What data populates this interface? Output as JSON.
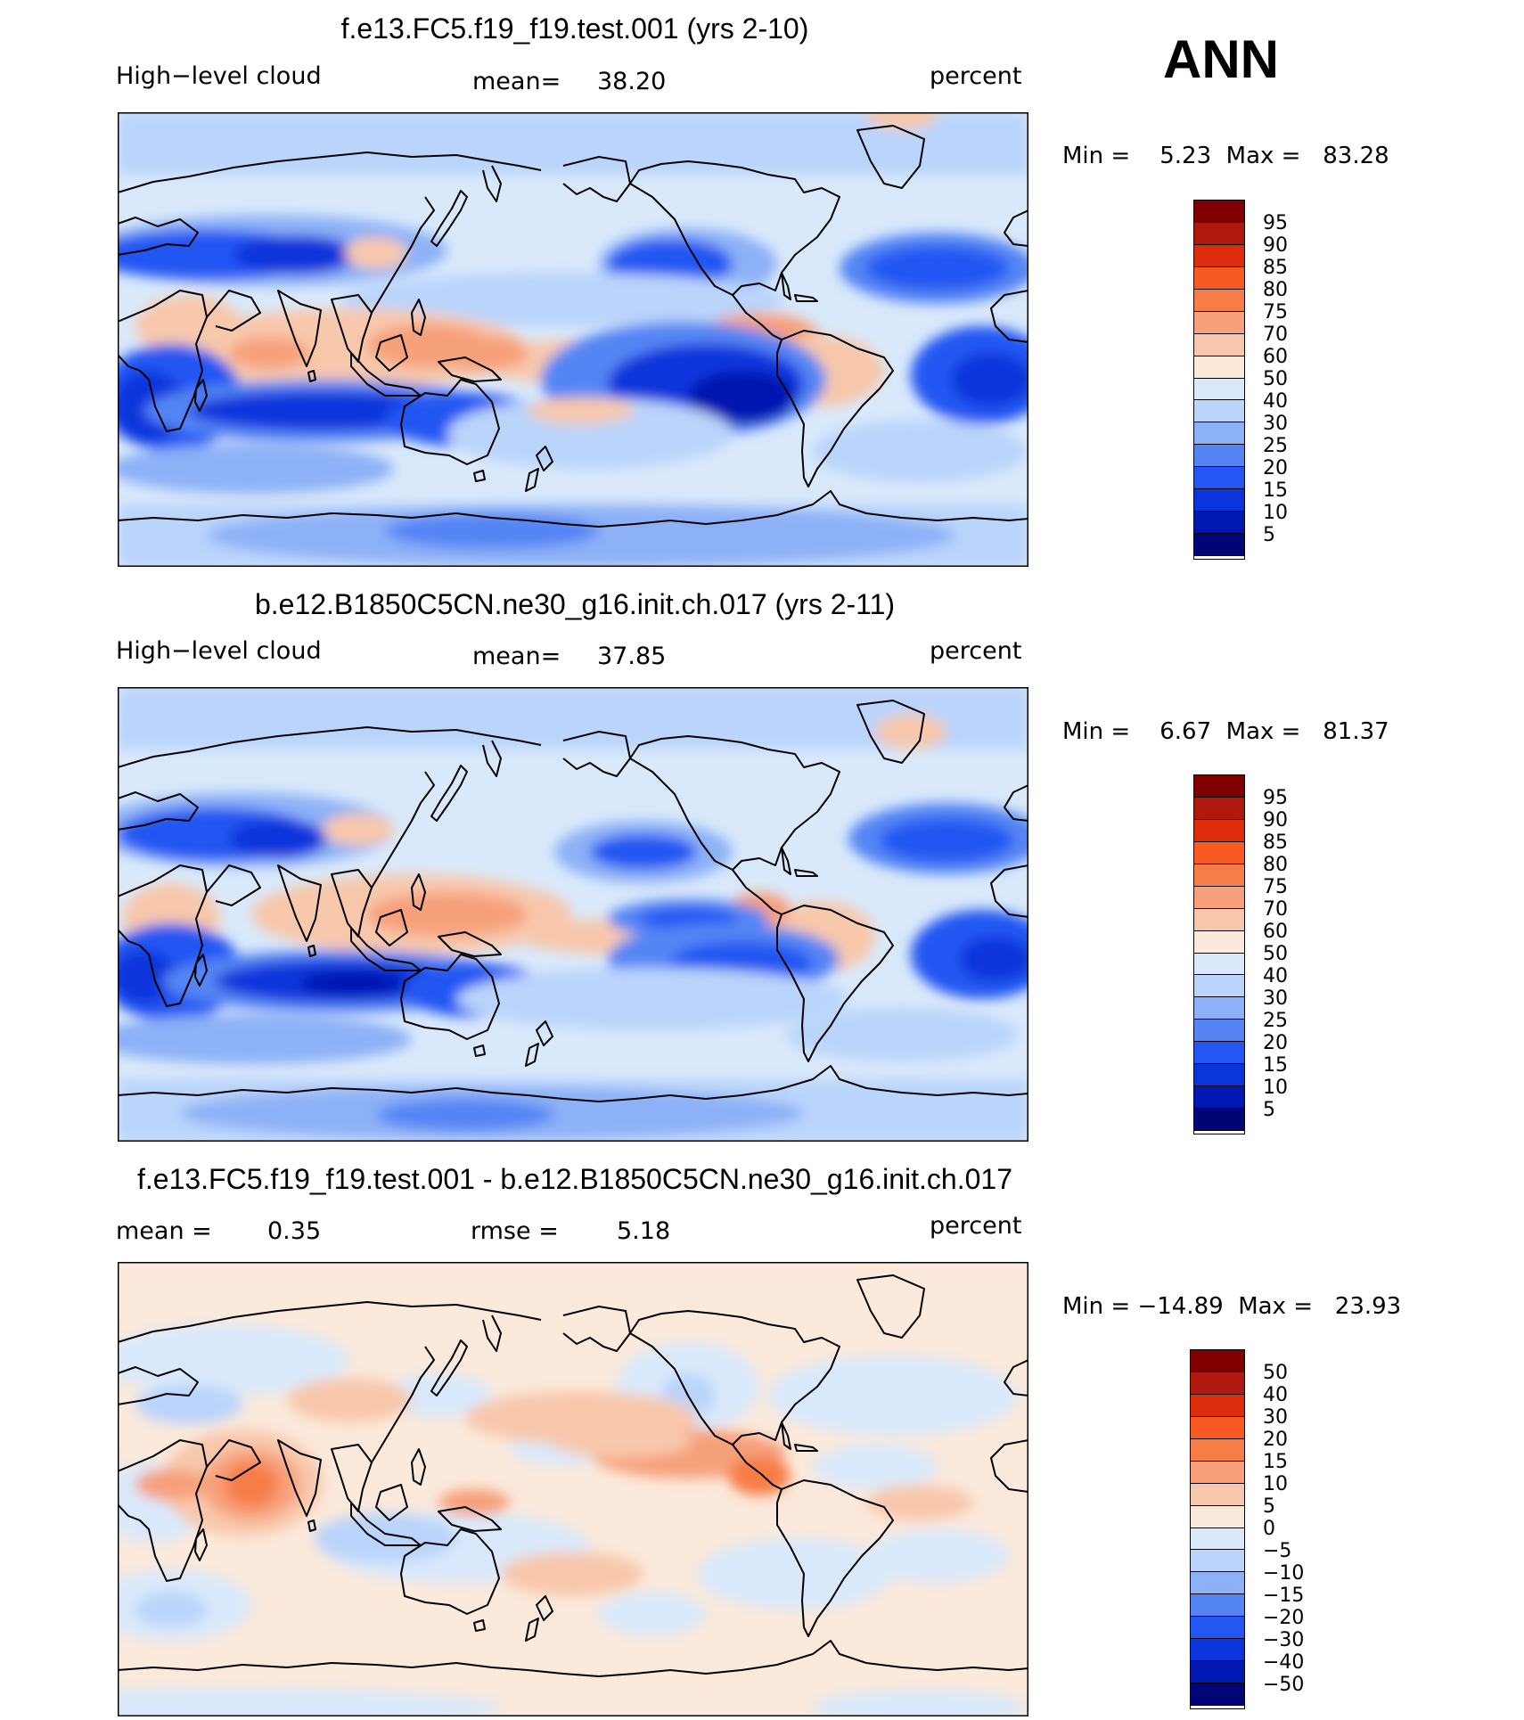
{
  "season_label": "ANN",
  "panels": [
    {
      "id": "test",
      "title": "f.e13.FC5.f19_f19.test.001 (yrs 2-10)",
      "variable": "High−level cloud",
      "stat1_label": "mean=",
      "stat1_value": "38.20",
      "units": "percent",
      "min_max_text": "Min =    5.23  Max =   83.28",
      "colorbar_labels": [
        "95",
        "90",
        "85",
        "80",
        "75",
        "70",
        "60",
        "50",
        "40",
        "30",
        "25",
        "20",
        "15",
        "10",
        "5"
      ]
    },
    {
      "id": "control",
      "title": "b.e12.B1850C5CN.ne30_g16.init.ch.017 (yrs 2-11)",
      "variable": "High−level cloud",
      "stat1_label": "mean=",
      "stat1_value": "37.85",
      "units": "percent",
      "min_max_text": "Min =    6.67  Max =   81.37",
      "colorbar_labels": [
        "95",
        "90",
        "85",
        "80",
        "75",
        "70",
        "60",
        "50",
        "40",
        "30",
        "25",
        "20",
        "15",
        "10",
        "5"
      ]
    },
    {
      "id": "difference",
      "title": "f.e13.FC5.f19_f19.test.001 - b.e12.B1850C5CN.ne30_g16.init.ch.017",
      "stat1_label": "mean =",
      "stat1_value": "0.35",
      "stat2_label": "rmse =",
      "stat2_value": "5.18",
      "units": "percent",
      "min_max_text": "Min = −14.89  Max =   23.93",
      "colorbar_labels": [
        "50",
        "40",
        "30",
        "20",
        "15",
        "10",
        "5",
        "0",
        "−5",
        "−10",
        "−15",
        "−20",
        "−30",
        "−40",
        "−50"
      ]
    }
  ],
  "colors": {
    "colorbar": [
      "#800000",
      "#B2190E",
      "#DE2D0C",
      "#F65A20",
      "#F77D47",
      "#F7A07B",
      "#F8C8AC",
      "#FBE9DB",
      "#D9E9FB",
      "#BAD4FB",
      "#8DB1F7",
      "#5585F4",
      "#2356F2",
      "#0A35DB",
      "#0018B1",
      "#000575"
    ],
    "diff_colorbar": [
      "#800000",
      "#B2190E",
      "#DE2D0C",
      "#F65A20",
      "#F77D47",
      "#F7A07B",
      "#F8C8AC",
      "#FBE9DB",
      "#D9E9FB",
      "#BAD4FB",
      "#8DB1F7",
      "#5585F4",
      "#2356F2",
      "#0A35DB",
      "#0018B1",
      "#000575"
    ],
    "map_border": "#000000",
    "coastline": "#000000"
  },
  "chart_data": [
    {
      "type": "heatmap",
      "title": "f.e13.FC5.f19_f19.test.001 (yrs 2-10)",
      "field": "High-level cloud",
      "units": "percent",
      "projection": "cylindrical equidistant, centered 180",
      "mean": 38.2,
      "min": 5.23,
      "max": 83.28,
      "levels": [
        5,
        10,
        15,
        20,
        25,
        30,
        40,
        50,
        60,
        70,
        75,
        80,
        85,
        90,
        95
      ]
    },
    {
      "type": "heatmap",
      "title": "b.e12.B1850C5CN.ne30_g16.init.ch.017 (yrs 2-11)",
      "field": "High-level cloud",
      "units": "percent",
      "projection": "cylindrical equidistant, centered 180",
      "mean": 37.85,
      "min": 6.67,
      "max": 81.37,
      "levels": [
        5,
        10,
        15,
        20,
        25,
        30,
        40,
        50,
        60,
        70,
        75,
        80,
        85,
        90,
        95
      ]
    },
    {
      "type": "heatmap",
      "title": "f.e13.FC5.f19_f19.test.001 - b.e12.B1850C5CN.ne30_g16.init.ch.017",
      "field": "High-level cloud difference",
      "units": "percent",
      "mean": 0.35,
      "rmse": 5.18,
      "min": -14.89,
      "max": 23.93,
      "levels": [
        -50,
        -40,
        -30,
        -20,
        -15,
        -10,
        -5,
        0,
        5,
        10,
        15,
        20,
        30,
        40,
        50
      ]
    }
  ]
}
